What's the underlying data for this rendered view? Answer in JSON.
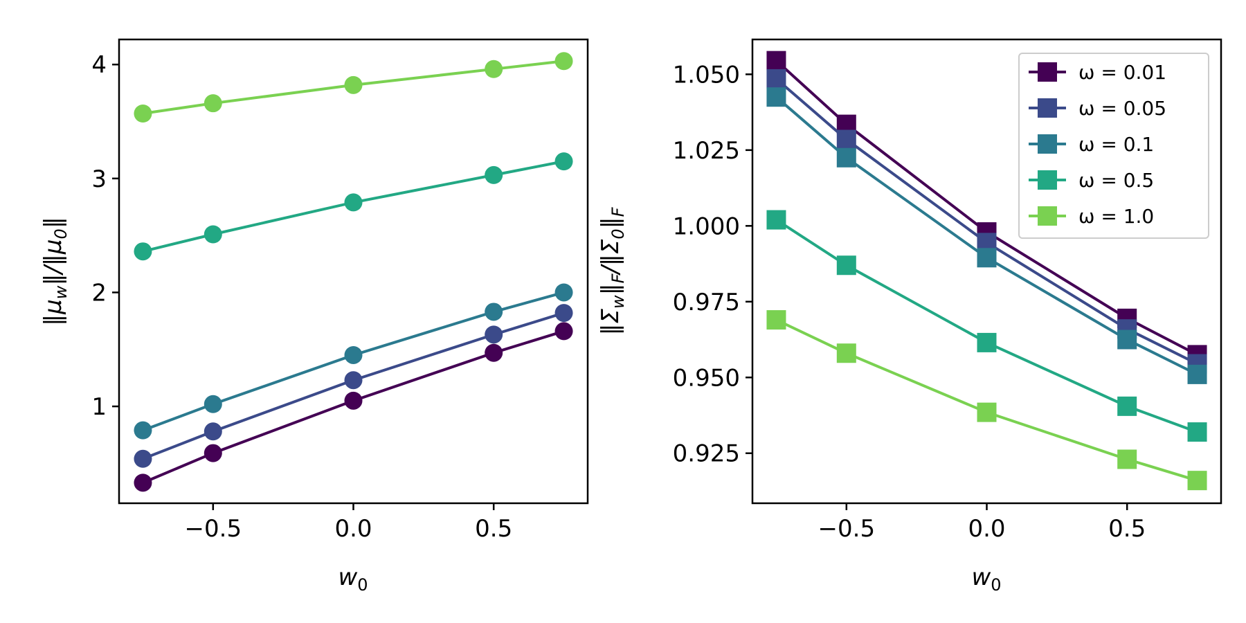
{
  "chart_data": [
    {
      "type": "line",
      "marker": "circle",
      "xlabel": "w_0",
      "ylabel": "‖μ_w‖/‖μ_0‖",
      "xlim": [
        -0.835,
        0.835
      ],
      "ylim": [
        0.15,
        4.22
      ],
      "xticks": [
        -0.5,
        0.0,
        0.5
      ],
      "xtick_labels": [
        "−0.5",
        "0.0",
        "0.5"
      ],
      "yticks": [
        1,
        2,
        3,
        4
      ],
      "ytick_labels": [
        "1",
        "2",
        "3",
        "4"
      ],
      "x": [
        -0.75,
        -0.5,
        0.0,
        0.5,
        0.75
      ],
      "series": [
        {
          "name": "ω = 0.01",
          "color": "#440154",
          "values": [
            0.33,
            0.59,
            1.05,
            1.47,
            1.66
          ]
        },
        {
          "name": "ω = 0.05",
          "color": "#3b4a8a",
          "values": [
            0.54,
            0.78,
            1.23,
            1.63,
            1.82
          ]
        },
        {
          "name": "ω = 0.1",
          "color": "#2b7a8f",
          "values": [
            0.79,
            1.02,
            1.45,
            1.83,
            2.0
          ]
        },
        {
          "name": "ω = 0.5",
          "color": "#22a884",
          "values": [
            2.36,
            2.51,
            2.79,
            3.03,
            3.15
          ]
        },
        {
          "name": "ω = 1.0",
          "color": "#7ad151",
          "values": [
            3.57,
            3.66,
            3.82,
            3.96,
            4.03
          ]
        }
      ]
    },
    {
      "type": "line",
      "marker": "square",
      "xlabel": "w_0",
      "ylabel": "‖Σ_w‖_F/‖Σ_0‖_F",
      "xlim": [
        -0.835,
        0.835
      ],
      "ylim": [
        0.9085,
        1.0615
      ],
      "xticks": [
        -0.5,
        0.0,
        0.5
      ],
      "xtick_labels": [
        "−0.5",
        "0.0",
        "0.5"
      ],
      "yticks": [
        0.925,
        0.95,
        0.975,
        1.0,
        1.025,
        1.05
      ],
      "ytick_labels": [
        "0.925",
        "0.950",
        "0.975",
        "1.000",
        "1.025",
        "1.050"
      ],
      "legend_position": "top-right",
      "x": [
        -0.75,
        -0.5,
        0.0,
        0.5,
        0.75
      ],
      "series": [
        {
          "name": "ω = 0.01",
          "color": "#440154",
          "values": [
            1.0545,
            1.0335,
            0.998,
            0.9695,
            0.9575
          ]
        },
        {
          "name": "ω = 0.05",
          "color": "#3b4a8a",
          "values": [
            1.0485,
            1.0285,
            0.9945,
            0.966,
            0.9545
          ]
        },
        {
          "name": "ω = 0.1",
          "color": "#2b7a8f",
          "values": [
            1.0425,
            1.0225,
            0.9895,
            0.9625,
            0.951
          ]
        },
        {
          "name": "ω = 0.5",
          "color": "#22a884",
          "values": [
            1.002,
            0.987,
            0.9615,
            0.9405,
            0.932
          ]
        },
        {
          "name": "ω = 1.0",
          "color": "#7ad151",
          "values": [
            0.969,
            0.958,
            0.9385,
            0.923,
            0.916
          ]
        }
      ]
    }
  ],
  "legend": {
    "entries": [
      "ω = 0.01",
      "ω = 0.05",
      "ω = 0.1",
      "ω = 0.5",
      "ω = 1.0"
    ]
  },
  "labels": {
    "left_xlabel_base": "w",
    "left_xlabel_sub": "0",
    "left_ylabel_parts": [
      "‖μ",
      "w",
      "‖/‖μ",
      "0",
      "‖"
    ],
    "right_xlabel_base": "w",
    "right_xlabel_sub": "0",
    "right_ylabel_parts": [
      "‖Σ",
      "w",
      "‖",
      "F",
      "/‖Σ",
      "0",
      "‖",
      "F"
    ]
  }
}
